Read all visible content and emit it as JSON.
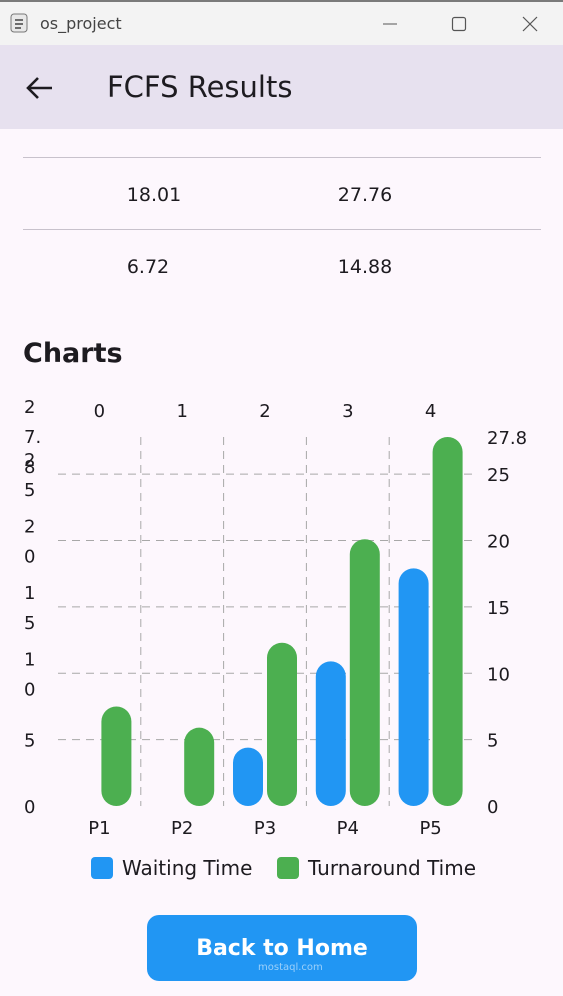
{
  "window": {
    "title": "os_project"
  },
  "appbar": {
    "title": "FCFS Results"
  },
  "table": {
    "rows": [
      [
        "18.01",
        "27.76"
      ],
      [
        "6.72",
        "14.88"
      ]
    ]
  },
  "charts_heading": "Charts",
  "chart_data": {
    "type": "bar",
    "categories": [
      "P1",
      "P2",
      "P3",
      "P4",
      "P5"
    ],
    "top_axis_labels": [
      "0",
      "1",
      "2",
      "3",
      "4"
    ],
    "series": [
      {
        "name": "Waiting Time",
        "color": "#2196f3",
        "values": [
          0,
          0,
          4.4,
          10.9,
          17.9
        ]
      },
      {
        "name": "Turnaround Time",
        "color": "#4caf50",
        "values": [
          7.5,
          5.9,
          12.3,
          20.1,
          27.8
        ]
      }
    ],
    "ylim": [
      0,
      27.8
    ],
    "y_ticks": [
      0,
      5,
      10,
      15,
      20,
      25
    ],
    "y_max_label": "27.8",
    "left_tick_labels": [
      {
        "value": 0,
        "lines": [
          "0"
        ]
      },
      {
        "value": 5,
        "lines": [
          "5"
        ]
      },
      {
        "value": 10,
        "lines": [
          "1",
          "0"
        ]
      },
      {
        "value": 15,
        "lines": [
          "1",
          "5"
        ]
      },
      {
        "value": 20,
        "lines": [
          "2",
          "0"
        ]
      },
      {
        "value": 25,
        "lines": [
          "2",
          "5"
        ]
      },
      {
        "value": 27.8,
        "lines": [
          "2",
          "7.",
          "8"
        ]
      }
    ],
    "grid": true,
    "legend_position": "bottom"
  },
  "legend": {
    "waiting": "Waiting Time",
    "turnaround": "Turnaround Time",
    "waiting_color": "#2196f3",
    "turnaround_color": "#4caf50"
  },
  "button": {
    "label": "Back to Home"
  },
  "watermark": "mostaql.com"
}
